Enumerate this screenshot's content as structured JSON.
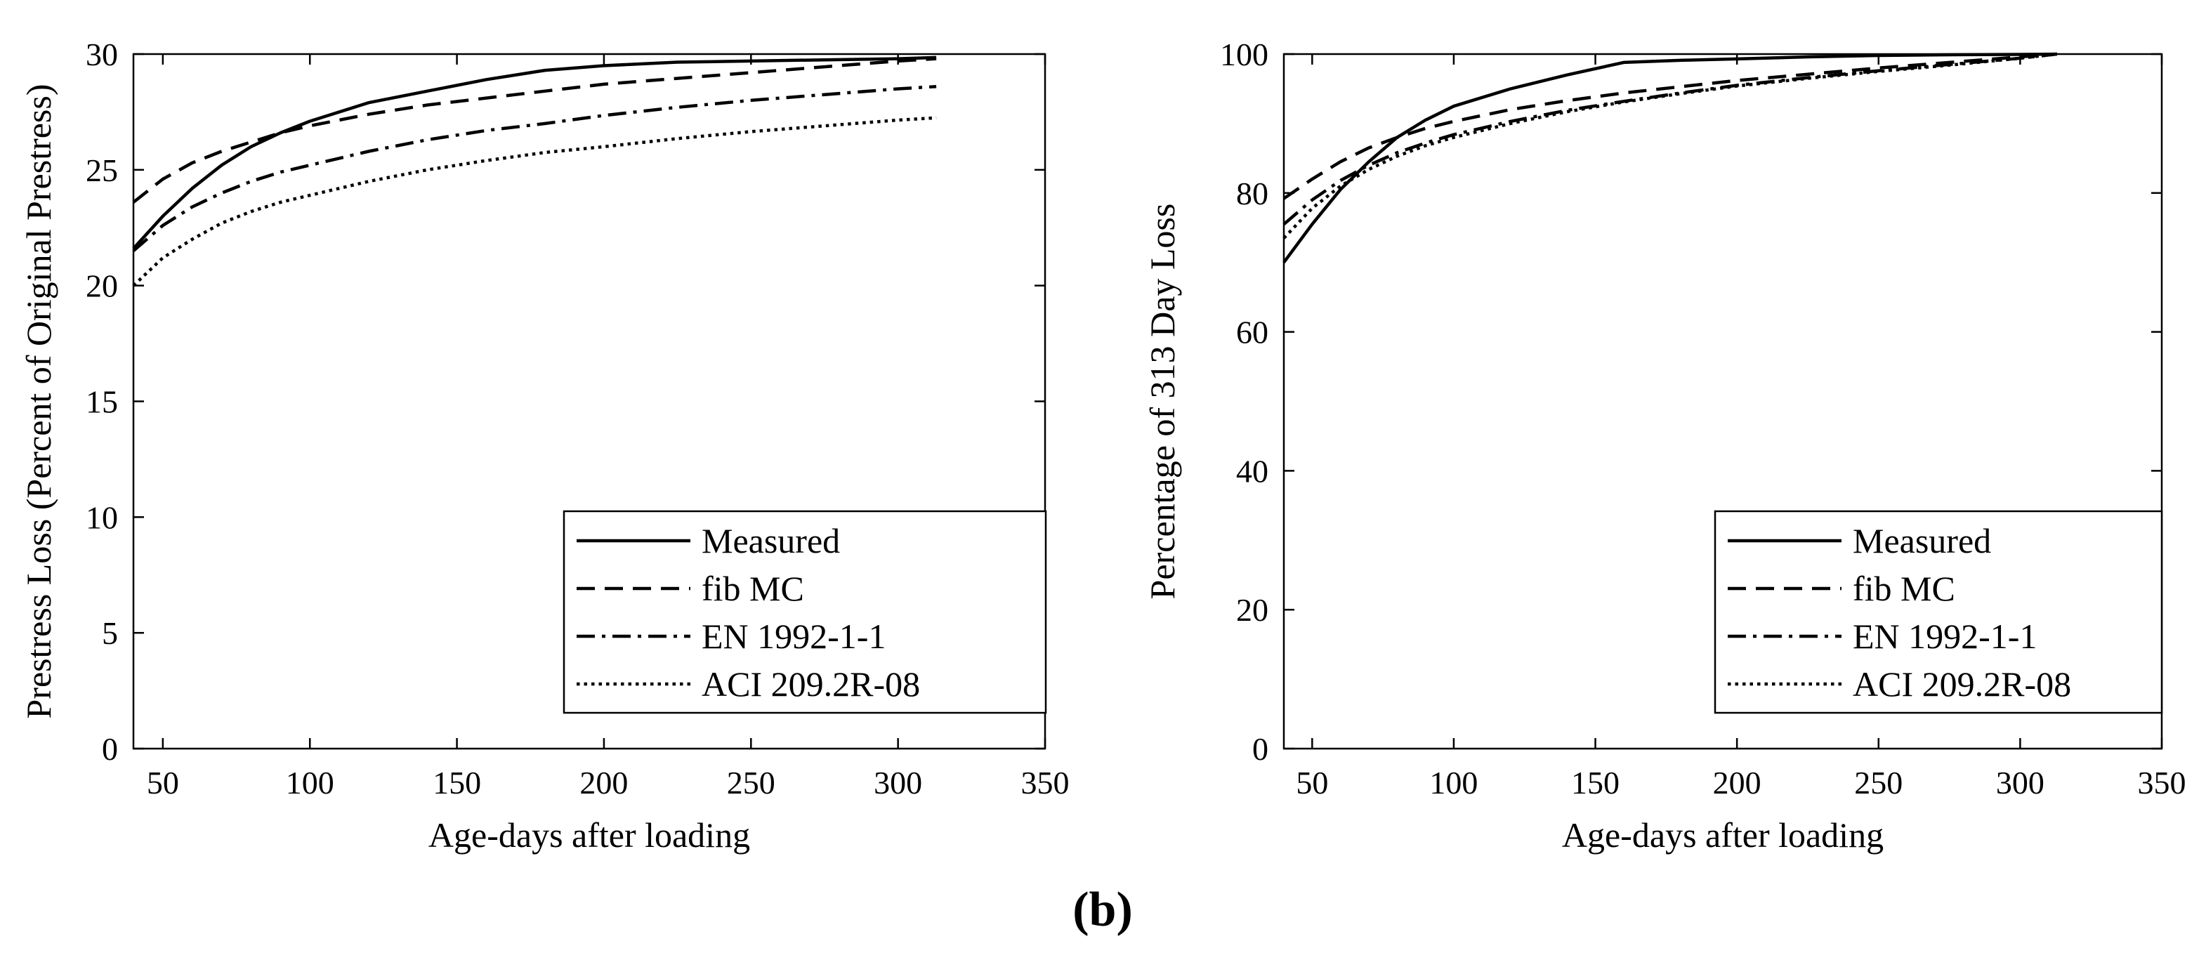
{
  "figure_label": "(b)",
  "chart_data": [
    {
      "type": "line",
      "title": "",
      "xlabel": "Age-days after loading",
      "ylabel": "Prestress Loss (Percent of Original Prestress)",
      "xlim": [
        40,
        350
      ],
      "ylim": [
        0,
        30
      ],
      "xticks": [
        50,
        100,
        150,
        200,
        250,
        300,
        350
      ],
      "yticks": [
        0,
        5,
        10,
        15,
        20,
        25,
        30
      ],
      "grid": false,
      "legend_position": "bottom-right",
      "x": [
        40,
        50,
        60,
        70,
        80,
        90,
        100,
        120,
        140,
        160,
        180,
        200,
        225,
        250,
        275,
        300,
        313
      ],
      "series": [
        {
          "name": "Measured",
          "dash": "solid",
          "values": [
            21.6,
            23.0,
            24.2,
            25.2,
            26.0,
            26.6,
            27.1,
            27.9,
            28.4,
            28.9,
            29.3,
            29.5,
            29.65,
            29.7,
            29.75,
            29.8,
            29.85
          ]
        },
        {
          "name": "fib MC",
          "dash": "dashed",
          "values": [
            23.6,
            24.6,
            25.3,
            25.8,
            26.2,
            26.6,
            26.9,
            27.4,
            27.8,
            28.1,
            28.4,
            28.7,
            28.95,
            29.2,
            29.45,
            29.7,
            29.8
          ]
        },
        {
          "name": "EN 1992-1-1",
          "dash": "dashdot",
          "values": [
            21.5,
            22.6,
            23.4,
            24.0,
            24.5,
            24.9,
            25.2,
            25.8,
            26.3,
            26.7,
            27.0,
            27.35,
            27.7,
            28.0,
            28.25,
            28.5,
            28.6
          ]
        },
        {
          "name": "ACI 209.2R-08",
          "dash": "dotted",
          "values": [
            20.0,
            21.2,
            22.0,
            22.7,
            23.2,
            23.6,
            23.9,
            24.5,
            25.0,
            25.4,
            25.75,
            26.0,
            26.35,
            26.65,
            26.9,
            27.15,
            27.25
          ]
        }
      ]
    },
    {
      "type": "line",
      "title": "",
      "xlabel": "Age-days after loading",
      "ylabel": "Percentage of 313 Day Loss",
      "xlim": [
        40,
        350
      ],
      "ylim": [
        0,
        100
      ],
      "xticks": [
        50,
        100,
        150,
        200,
        250,
        300,
        350
      ],
      "yticks": [
        0,
        20,
        40,
        60,
        80,
        100
      ],
      "grid": false,
      "legend_position": "bottom-right",
      "x": [
        40,
        50,
        60,
        70,
        80,
        90,
        100,
        120,
        140,
        160,
        180,
        200,
        225,
        250,
        275,
        300,
        313
      ],
      "series": [
        {
          "name": "Measured",
          "dash": "solid",
          "values": [
            70.0,
            75.5,
            80.5,
            84.5,
            88.0,
            90.5,
            92.5,
            95.0,
            97.0,
            98.8,
            99.1,
            99.3,
            99.6,
            99.8,
            99.9,
            99.95,
            100.0
          ]
        },
        {
          "name": "fib MC",
          "dash": "dashed",
          "values": [
            79.2,
            82.0,
            84.5,
            86.5,
            88.0,
            89.3,
            90.3,
            92.0,
            93.3,
            94.4,
            95.3,
            96.2,
            97.1,
            98.0,
            98.8,
            99.6,
            100.0
          ]
        },
        {
          "name": "EN 1992-1-1",
          "dash": "dashdot",
          "values": [
            75.5,
            79.0,
            81.8,
            84.0,
            85.8,
            87.2,
            88.4,
            90.3,
            91.9,
            93.2,
            94.4,
            95.5,
            96.6,
            97.6,
            98.5,
            99.4,
            100.0
          ]
        },
        {
          "name": "ACI 209.2R-08",
          "dash": "dotted",
          "values": [
            73.5,
            77.8,
            81.0,
            83.4,
            85.3,
            86.8,
            88.0,
            90.0,
            91.7,
            93.1,
            94.3,
            95.4,
            96.5,
            97.5,
            98.4,
            99.4,
            100.0
          ]
        }
      ]
    }
  ]
}
